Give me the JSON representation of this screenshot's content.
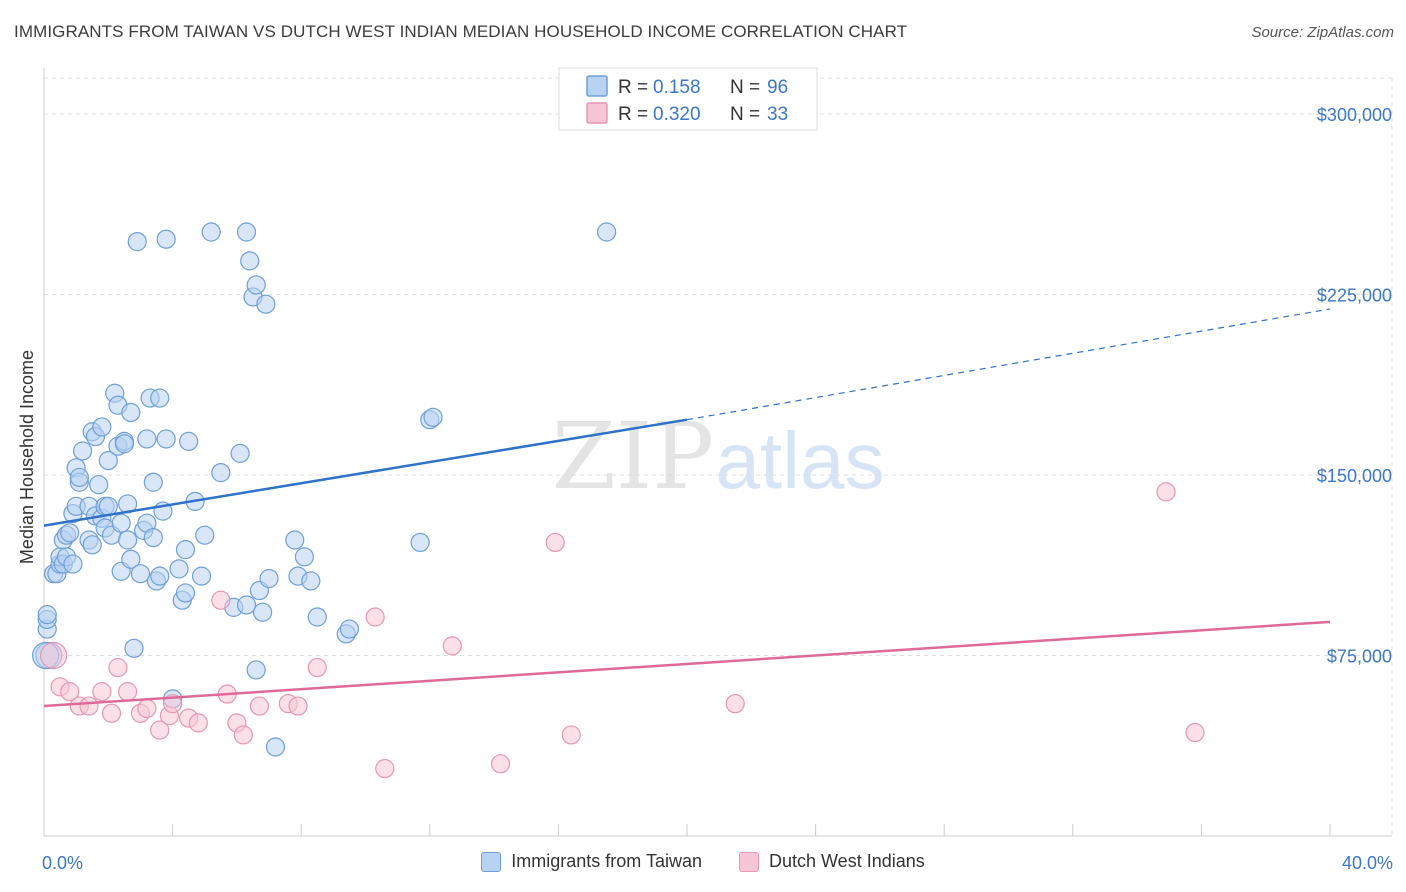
{
  "title": "IMMIGRANTS FROM TAIWAN VS DUTCH WEST INDIAN MEDIAN HOUSEHOLD INCOME CORRELATION CHART",
  "source": "Source: ZipAtlas.com",
  "watermark": {
    "zip": "ZIP",
    "atlas": "atlas"
  },
  "colors": {
    "blue_fill": "#b8d2f2",
    "blue_stroke": "#6f9fd8",
    "blue_line": "#2f72c8",
    "pink_fill": "#f7c6d6",
    "pink_stroke": "#e896b3",
    "pink_line": "#e06a97",
    "axis_label_blue": "#3b78c6",
    "grid": "#dddddd"
  },
  "legend_top": [
    {
      "r_label": "R =",
      "r_value": "0.158",
      "n_label": "N =",
      "n_value": "96"
    },
    {
      "r_label": "R =",
      "r_value": "0.320",
      "n_label": "N =",
      "n_value": "33"
    }
  ],
  "chart_data": {
    "type": "scatter",
    "xlabel": "",
    "ylabel": "Median Household Income",
    "x_tick_labels": [
      "0.0%",
      "40.0%"
    ],
    "y_tick_labels": [
      "$75,000",
      "$150,000",
      "$225,000",
      "$300,000"
    ],
    "y_ticks": [
      75000,
      150000,
      225000,
      300000
    ],
    "xlim": [
      0,
      40
    ],
    "ylim": [
      0,
      315000
    ],
    "grid": true,
    "legend": "bottom-center",
    "series": [
      {
        "name": "Immigrants from Taiwan",
        "color": "#b8d2f2",
        "trend": {
          "x0": 0,
          "y0": 129000,
          "x1": 20,
          "y1": 173000,
          "dash_to_x": 40,
          "dash_to_y": 219000
        },
        "points": [
          [
            0.1,
            86000
          ],
          [
            0.1,
            90000
          ],
          [
            0.1,
            92000
          ],
          [
            0.3,
            109000
          ],
          [
            0.4,
            109000
          ],
          [
            0.5,
            113000
          ],
          [
            0.5,
            116000
          ],
          [
            0.6,
            113000
          ],
          [
            0.6,
            123000
          ],
          [
            0.7,
            116000
          ],
          [
            0.7,
            125000
          ],
          [
            0.8,
            126000
          ],
          [
            0.9,
            134000
          ],
          [
            0.9,
            113000
          ],
          [
            1.0,
            137000
          ],
          [
            1.0,
            153000
          ],
          [
            1.1,
            147000
          ],
          [
            1.1,
            149000
          ],
          [
            1.2,
            160000
          ],
          [
            1.4,
            123000
          ],
          [
            1.4,
            137000
          ],
          [
            1.5,
            121000
          ],
          [
            1.5,
            168000
          ],
          [
            1.6,
            133000
          ],
          [
            1.6,
            166000
          ],
          [
            1.7,
            146000
          ],
          [
            1.8,
            132000
          ],
          [
            1.8,
            170000
          ],
          [
            1.9,
            137000
          ],
          [
            1.9,
            128000
          ],
          [
            2.0,
            156000
          ],
          [
            2.0,
            137000
          ],
          [
            2.1,
            125000
          ],
          [
            2.2,
            184000
          ],
          [
            2.3,
            179000
          ],
          [
            2.3,
            162000
          ],
          [
            2.4,
            110000
          ],
          [
            2.4,
            130000
          ],
          [
            2.5,
            164000
          ],
          [
            2.5,
            163000
          ],
          [
            2.6,
            123000
          ],
          [
            2.6,
            138000
          ],
          [
            2.7,
            115000
          ],
          [
            2.7,
            176000
          ],
          [
            2.8,
            78000
          ],
          [
            2.9,
            247000
          ],
          [
            3.0,
            109000
          ],
          [
            3.1,
            127000
          ],
          [
            3.2,
            130000
          ],
          [
            3.2,
            165000
          ],
          [
            3.3,
            182000
          ],
          [
            3.4,
            124000
          ],
          [
            3.4,
            147000
          ],
          [
            3.5,
            106000
          ],
          [
            3.6,
            108000
          ],
          [
            3.6,
            182000
          ],
          [
            3.7,
            135000
          ],
          [
            3.8,
            165000
          ],
          [
            3.8,
            248000
          ],
          [
            4.0,
            57000
          ],
          [
            4.2,
            111000
          ],
          [
            4.3,
            98000
          ],
          [
            4.4,
            101000
          ],
          [
            4.4,
            119000
          ],
          [
            4.5,
            164000
          ],
          [
            4.7,
            139000
          ],
          [
            4.9,
            108000
          ],
          [
            5.0,
            125000
          ],
          [
            5.2,
            251000
          ],
          [
            5.5,
            151000
          ],
          [
            5.9,
            95000
          ],
          [
            6.1,
            159000
          ],
          [
            6.3,
            96000
          ],
          [
            6.3,
            251000
          ],
          [
            6.4,
            239000
          ],
          [
            6.5,
            224000
          ],
          [
            6.6,
            229000
          ],
          [
            6.6,
            69000
          ],
          [
            6.7,
            102000
          ],
          [
            6.8,
            93000
          ],
          [
            6.9,
            221000
          ],
          [
            7.0,
            107000
          ],
          [
            7.2,
            37000
          ],
          [
            7.8,
            123000
          ],
          [
            7.9,
            108000
          ],
          [
            8.1,
            116000
          ],
          [
            8.3,
            106000
          ],
          [
            8.5,
            91000
          ],
          [
            9.4,
            84000
          ],
          [
            9.5,
            86000
          ],
          [
            11.7,
            122000
          ],
          [
            12.0,
            173000
          ],
          [
            12.1,
            174000
          ],
          [
            17.5,
            251000
          ],
          [
            0.15,
            75000
          ],
          [
            0.05,
            75000
          ]
        ]
      },
      {
        "name": "Dutch West Indians",
        "color": "#f7c6d6",
        "trend": {
          "x0": 0,
          "y0": 54000,
          "x1": 40,
          "y1": 89000
        },
        "points": [
          [
            0.3,
            75000
          ],
          [
            0.5,
            62000
          ],
          [
            0.8,
            60000
          ],
          [
            1.1,
            54000
          ],
          [
            1.4,
            54000
          ],
          [
            1.8,
            60000
          ],
          [
            2.1,
            51000
          ],
          [
            2.3,
            70000
          ],
          [
            2.6,
            60000
          ],
          [
            3.0,
            51000
          ],
          [
            3.2,
            53000
          ],
          [
            3.6,
            44000
          ],
          [
            3.9,
            50000
          ],
          [
            4.0,
            55000
          ],
          [
            4.5,
            49000
          ],
          [
            4.8,
            47000
          ],
          [
            5.5,
            98000
          ],
          [
            5.7,
            59000
          ],
          [
            6.0,
            47000
          ],
          [
            6.2,
            42000
          ],
          [
            6.7,
            54000
          ],
          [
            7.6,
            55000
          ],
          [
            7.9,
            54000
          ],
          [
            8.5,
            70000
          ],
          [
            10.3,
            91000
          ],
          [
            10.6,
            28000
          ],
          [
            12.7,
            79000
          ],
          [
            14.2,
            30000
          ],
          [
            15.9,
            122000
          ],
          [
            16.4,
            42000
          ],
          [
            21.5,
            55000
          ],
          [
            34.9,
            143000
          ],
          [
            35.8,
            43000
          ]
        ]
      }
    ]
  }
}
